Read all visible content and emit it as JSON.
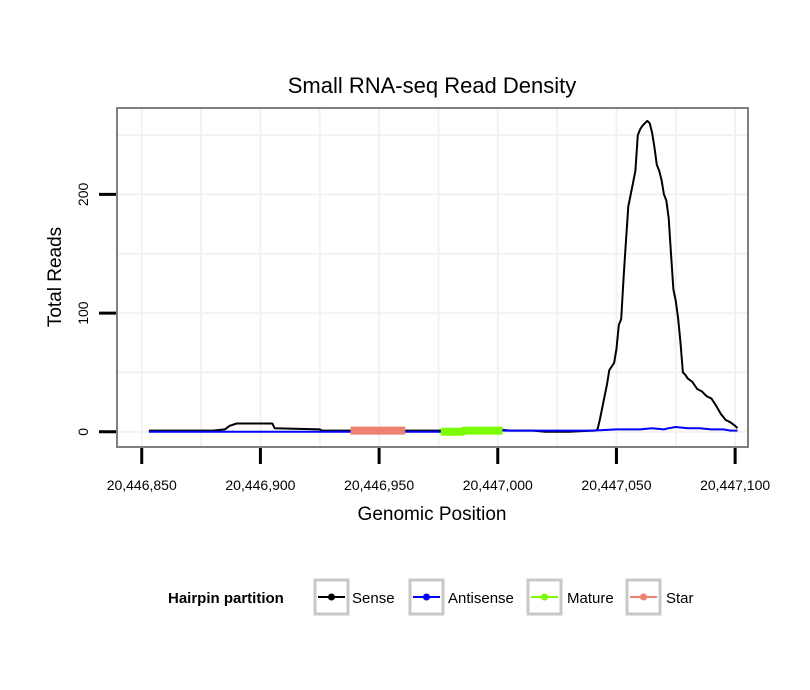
{
  "chart_data": {
    "type": "line",
    "title": "Small RNA-seq Read Density",
    "xlabel": "Genomic Position",
    "ylabel": "Total Reads",
    "xlim": [
      20446840,
      20447105
    ],
    "ylim": [
      -12,
      272
    ],
    "x_ticks": [
      20446850,
      20446900,
      20446950,
      20447000,
      20447050,
      20447100
    ],
    "x_tick_labels": [
      "20,446,850",
      "20,446,900",
      "20,446,950",
      "20,447,000",
      "20,447,050",
      "20,447,100"
    ],
    "y_ticks": [
      0,
      100,
      200
    ],
    "y_tick_labels": [
      "0",
      "100",
      "200"
    ],
    "grid": true,
    "legend": {
      "title": "Hairpin partition",
      "position": "bottom",
      "entries": [
        {
          "label": "Sense",
          "color": "#000000"
        },
        {
          "label": "Antisense",
          "color": "#0000ff"
        },
        {
          "label": "Mature",
          "color": "#7cfc00"
        },
        {
          "label": "Star",
          "color": "#f08070"
        }
      ]
    },
    "series": [
      {
        "name": "Sense",
        "color": "#000000",
        "width": 2,
        "x": [
          20446853,
          20446880,
          20446885,
          20446887,
          20446890,
          20446905,
          20446906,
          20446925,
          20446926,
          20446940,
          20446960,
          20446975,
          20446990,
          20446995,
          20447000,
          20447005,
          20447015,
          20447020,
          20447030,
          20447040,
          20447041,
          20447042,
          20447043,
          20447044,
          20447045,
          20447046,
          20447047,
          20447048,
          20447049,
          20447050,
          20447051,
          20447052,
          20447053,
          20447054,
          20447055,
          20447056,
          20447057,
          20447058,
          20447059,
          20447060,
          20447061,
          20447062,
          20447063,
          20447064,
          20447065,
          20447066,
          20447067,
          20447068,
          20447069,
          20447070,
          20447071,
          20447072,
          20447073,
          20447074,
          20447075,
          20447076,
          20447077,
          20447078,
          20447079,
          20447080,
          20447082,
          20447084,
          20447086,
          20447088,
          20447090,
          20447092,
          20447094,
          20447096,
          20447098,
          20447100,
          20447101
        ],
        "y": [
          1,
          1,
          2,
          5,
          7,
          7,
          3,
          2,
          1,
          1,
          1,
          1,
          1,
          2,
          2,
          1,
          1,
          0,
          0,
          1,
          1,
          2,
          10,
          20,
          30,
          40,
          52,
          55,
          58,
          70,
          90,
          95,
          130,
          160,
          190,
          200,
          210,
          220,
          250,
          255,
          258,
          260,
          262,
          260,
          252,
          240,
          225,
          220,
          212,
          200,
          195,
          180,
          150,
          120,
          110,
          95,
          75,
          50,
          48,
          45,
          42,
          36,
          34,
          30,
          28,
          22,
          15,
          10,
          8,
          5,
          3
        ]
      },
      {
        "name": "Antisense",
        "color": "#0000ff",
        "width": 2,
        "x": [
          20446853,
          20446990,
          20447000,
          20447040,
          20447050,
          20447060,
          20447065,
          20447070,
          20447072,
          20447075,
          20447080,
          20447085,
          20447090,
          20447095,
          20447098,
          20447101
        ],
        "y": [
          0,
          0,
          1,
          1,
          2,
          2,
          3,
          2,
          3,
          4,
          3,
          3,
          2,
          2,
          1,
          1
        ]
      },
      {
        "name": "Star",
        "color": "#f08070",
        "width": 8,
        "x": [
          20446938,
          20446961
        ],
        "y": [
          1,
          1
        ]
      },
      {
        "name": "Mature",
        "color": "#7cfc00",
        "width": 8,
        "x": [
          20446976,
          20446985,
          20446986,
          20447002
        ],
        "y": [
          0,
          0,
          1,
          1
        ]
      }
    ]
  }
}
